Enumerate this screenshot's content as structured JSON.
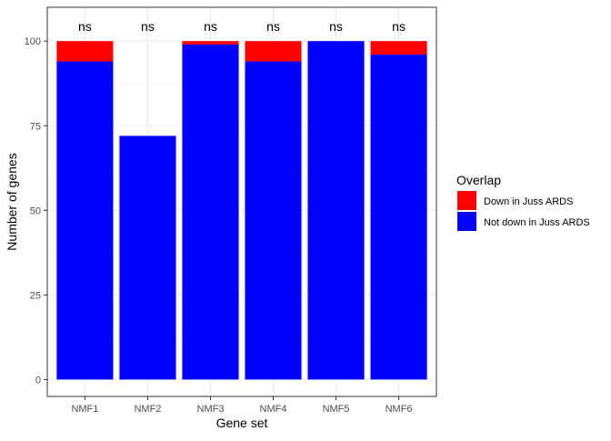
{
  "chart_data": {
    "type": "bar",
    "stacked": true,
    "xlabel": "Gene set",
    "ylabel": "Number of genes",
    "categories": [
      "NMF1",
      "NMF2",
      "NMF3",
      "NMF4",
      "NMF5",
      "NMF6"
    ],
    "series": [
      {
        "name": "Down in Juss ARDS",
        "color": "#FF0000",
        "values": [
          6,
          0,
          1,
          6,
          0,
          4
        ]
      },
      {
        "name": "Not down in Juss ARDS",
        "color": "#0000FF",
        "values": [
          94,
          72,
          99,
          94,
          100,
          96
        ]
      }
    ],
    "annotations": [
      "ns",
      "ns",
      "ns",
      "ns",
      "ns",
      "ns"
    ],
    "ylim": [
      -5,
      110
    ],
    "yticks": [
      0,
      25,
      50,
      75,
      100
    ],
    "grid": true,
    "legend": {
      "title": "Overlap",
      "position": "right",
      "items": [
        "Down in Juss ARDS",
        "Not down in Juss ARDS"
      ]
    }
  }
}
